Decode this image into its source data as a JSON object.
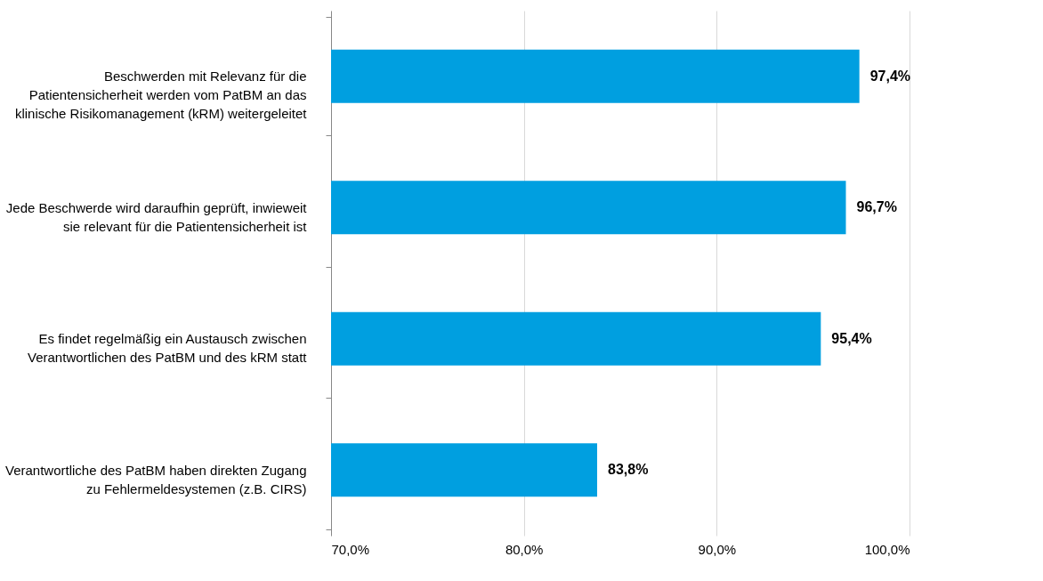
{
  "chart_data": {
    "type": "bar",
    "orientation": "horizontal",
    "categories": [
      "Beschwerden mit Relevanz für die Patientensicherheit werden vom PatBM an das klinische Risikomanagement (kRM) weitergeleitet",
      "Jede Beschwerde wird daraufhin geprüft, inwieweit sie relevant für die Patientensicherheit ist",
      "Es findet regelmäßig ein Austausch zwischen Verantwortlichen des PatBM und des kRM statt",
      "Verantwortliche des PatBM haben direkten Zugang zu Fehlermeldesystemen (z.B. CIRS)"
    ],
    "values": [
      97.4,
      96.7,
      95.4,
      83.8
    ],
    "value_labels": [
      "97,4%",
      "96,7%",
      "95,4%",
      "83,8%"
    ],
    "color": "#009fe0",
    "xlim": [
      70,
      100
    ],
    "xticks": [
      {
        "value": 70,
        "label": "70,0%"
      },
      {
        "value": 80,
        "label": "80,0%"
      },
      {
        "value": 90,
        "label": "90,0%"
      },
      {
        "value": 100,
        "label": "100,0%"
      }
    ],
    "grid": "x"
  }
}
